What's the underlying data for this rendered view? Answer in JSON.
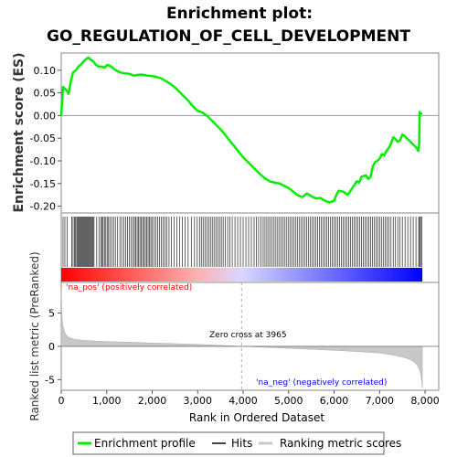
{
  "chart_data": {
    "type": "line",
    "title_line1": "Enrichment plot:",
    "title_line2": "GO_REGULATION_OF_CELL_DEVELOPMENT",
    "top_panel": {
      "ylabel": "Enrichment score (ES)",
      "ylim": [
        -0.215,
        0.138
      ],
      "yticks": [
        0.1,
        0.05,
        0.0,
        -0.05,
        -0.1,
        -0.15,
        -0.2
      ],
      "ytick_labels": [
        "0.10",
        "0.05",
        "0.00",
        "-0.05",
        "-0.10",
        "-0.15",
        "-0.20"
      ],
      "series": [
        {
          "name": "Enrichment profile",
          "color": "#00ee00",
          "x": [
            0,
            40,
            120,
            160,
            220,
            260,
            320,
            380,
            430,
            480,
            550,
            600,
            650,
            700,
            760,
            820,
            880,
            950,
            1020,
            1100,
            1200,
            1300,
            1400,
            1500,
            1600,
            1700,
            1800,
            1900,
            2000,
            2100,
            2200,
            2300,
            2400,
            2500,
            2600,
            2700,
            2800,
            2900,
            3000,
            3100,
            3200,
            3300,
            3400,
            3500,
            3600,
            3700,
            3800,
            3900,
            4000,
            4100,
            4200,
            4300,
            4400,
            4500,
            4600,
            4700,
            4800,
            4900,
            5000,
            5100,
            5200,
            5300,
            5400,
            5500,
            5600,
            5700,
            5800,
            5900,
            6000,
            6050,
            6100,
            6200,
            6300,
            6400,
            6500,
            6550,
            6600,
            6700,
            6750,
            6800,
            6850,
            6900,
            6950,
            7000,
            7050,
            7100,
            7150,
            7200,
            7250,
            7300,
            7350,
            7400,
            7450,
            7500,
            7550,
            7600,
            7650,
            7700,
            7750,
            7800,
            7850,
            7870,
            7880,
            7900,
            7940
          ],
          "y": [
            0.0,
            0.063,
            0.055,
            0.048,
            0.08,
            0.095,
            0.1,
            0.108,
            0.112,
            0.118,
            0.125,
            0.128,
            0.123,
            0.12,
            0.112,
            0.108,
            0.108,
            0.106,
            0.112,
            0.108,
            0.1,
            0.095,
            0.093,
            0.092,
            0.088,
            0.09,
            0.09,
            0.088,
            0.087,
            0.085,
            0.082,
            0.076,
            0.07,
            0.062,
            0.052,
            0.042,
            0.032,
            0.02,
            0.01,
            0.007,
            0.0,
            -0.01,
            -0.02,
            -0.03,
            -0.042,
            -0.055,
            -0.067,
            -0.08,
            -0.092,
            -0.102,
            -0.112,
            -0.122,
            -0.132,
            -0.14,
            -0.146,
            -0.148,
            -0.15,
            -0.155,
            -0.16,
            -0.168,
            -0.176,
            -0.18,
            -0.172,
            -0.178,
            -0.183,
            -0.182,
            -0.188,
            -0.192,
            -0.188,
            -0.175,
            -0.166,
            -0.168,
            -0.175,
            -0.16,
            -0.145,
            -0.148,
            -0.135,
            -0.132,
            -0.14,
            -0.136,
            -0.112,
            -0.103,
            -0.1,
            -0.095,
            -0.085,
            -0.088,
            -0.078,
            -0.072,
            -0.062,
            -0.048,
            -0.052,
            -0.058,
            -0.055,
            -0.042,
            -0.045,
            -0.05,
            -0.055,
            -0.06,
            -0.065,
            -0.07,
            -0.078,
            -0.062,
            0.008,
            0.005,
            0.003
          ]
        }
      ],
      "zero_line": true
    },
    "hits_panel": {
      "hits": [
        40,
        80,
        130,
        230,
        260,
        290,
        310,
        340,
        360,
        380,
        400,
        420,
        440,
        460,
        480,
        500,
        520,
        540,
        560,
        580,
        600,
        620,
        640,
        660,
        680,
        700,
        720,
        780,
        830,
        870,
        900,
        920,
        950,
        980,
        1010,
        1040,
        1070,
        1110,
        1150,
        1190,
        1240,
        1290,
        1330,
        1380,
        1420,
        1460,
        1500,
        1540,
        1580,
        1610,
        1640,
        1670,
        1700,
        1730,
        1760,
        1790,
        1820,
        1850,
        1880,
        1910,
        1940,
        1970,
        2000,
        2040,
        2080,
        2120,
        2160,
        2200,
        2240,
        2280,
        2320,
        2370,
        2420,
        2480,
        2540,
        2600,
        2660,
        2720,
        2790,
        2860,
        2930,
        2990,
        3040,
        3080,
        3120,
        3160,
        3200,
        3240,
        3280,
        3320,
        3360,
        3400,
        3440,
        3480,
        3520,
        3560,
        3610,
        3660,
        3710,
        3760,
        3820,
        3880,
        3940,
        4000,
        4060,
        4120,
        4180,
        4240,
        4290,
        4340,
        4390,
        4440,
        4480,
        4520,
        4560,
        4600,
        4640,
        4680,
        4720,
        4760,
        4800,
        4840,
        4880,
        4920,
        4960,
        5000,
        5040,
        5080,
        5120,
        5160,
        5200,
        5240,
        5280,
        5320,
        5360,
        5400,
        5440,
        5480,
        5520,
        5560,
        5600,
        5640,
        5680,
        5720,
        5760,
        5800,
        5840,
        5880,
        5920,
        5960,
        6000,
        6040,
        6080,
        6120,
        6160,
        6200,
        6240,
        6280,
        6320,
        6360,
        6400,
        6440,
        6480,
        6520,
        6560,
        6600,
        6640,
        6680,
        6720,
        6760,
        6800,
        6840,
        6880,
        6920,
        6960,
        7000,
        7040,
        7080,
        7120,
        7160,
        7200,
        7250,
        7300,
        7350,
        7400,
        7450,
        7500,
        7560,
        7620,
        7680,
        7740,
        7800,
        7860,
        7880,
        7900,
        7930
      ],
      "bar_gradient": [
        "#ff0000",
        "#ffb0b0",
        "#d8d8ff",
        "#0000ff"
      ],
      "label_pos": "'na_pos' (positively correlated)",
      "label_neg": "'na_neg' (negatively correlated)",
      "label_pos_color": "#ff0000",
      "label_neg_color": "#0000ff"
    },
    "metric_panel": {
      "ylabel": "Ranked list metric (PreRanked)",
      "ylim": [
        -6.6,
        9.6
      ],
      "yticks": [
        5,
        0,
        -5
      ],
      "ytick_labels": [
        "5",
        "0",
        "-5"
      ],
      "metric_x": [
        0,
        20,
        40,
        60,
        80,
        100,
        150,
        200,
        300,
        500,
        800,
        1200,
        1600,
        2000,
        2500,
        3000,
        3500,
        3965,
        4500,
        5000,
        5500,
        6000,
        6500,
        7000,
        7200,
        7400,
        7600,
        7700,
        7800,
        7850,
        7900,
        7920,
        7940
      ],
      "metric_y": [
        8.5,
        4.2,
        3.0,
        2.5,
        2.1,
        1.8,
        1.45,
        1.25,
        1.05,
        0.9,
        0.78,
        0.68,
        0.6,
        0.5,
        0.4,
        0.3,
        0.15,
        0.0,
        -0.15,
        -0.3,
        -0.45,
        -0.6,
        -0.78,
        -1.0,
        -1.2,
        -1.45,
        -1.8,
        -2.1,
        -2.6,
        -3.1,
        -4.0,
        -5.0,
        -6.3
      ],
      "zero_cross_label": "Zero cross at 3965",
      "zero_cross": 3965,
      "fill_color": "#c8c8c8"
    },
    "xaxis": {
      "xlabel": "Rank in Ordered Dataset",
      "xlim": [
        0,
        8300
      ],
      "xticks": [
        0,
        1000,
        2000,
        3000,
        4000,
        5000,
        6000,
        7000,
        8000
      ],
      "xtick_labels": [
        "0",
        "1,000",
        "2,000",
        "3,000",
        "4,000",
        "5,000",
        "6,000",
        "7,000",
        "8,000"
      ]
    },
    "legend": {
      "placement": "bottom",
      "items": [
        {
          "label": "Enrichment profile",
          "color": "#00ee00"
        },
        {
          "label": "Hits",
          "color": "#444444"
        },
        {
          "label": "Ranking metric scores",
          "color": "#c8c8c8"
        }
      ]
    }
  }
}
